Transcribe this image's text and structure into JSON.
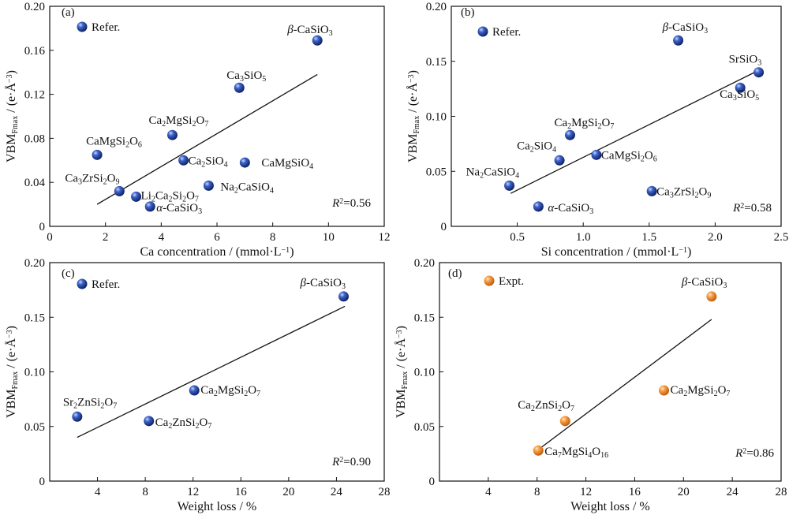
{
  "chart_data": [
    {
      "type": "scatter",
      "panel_label": "(a)",
      "xlabel": "Ca concentration / (mmol·L⁻¹)",
      "ylabel": "VBM_Fmax / (e·Å⁻³)",
      "xlim": [
        0,
        12
      ],
      "ylim": [
        0,
        0.2
      ],
      "xticks": [
        0,
        2,
        4,
        6,
        8,
        10,
        12
      ],
      "yticks": [
        0,
        0.04,
        0.08,
        0.12,
        0.16,
        0.2
      ],
      "ytick_labels": [
        "0",
        "0.04",
        "0.08",
        "0.12",
        "0.16",
        "0.20"
      ],
      "marker_color": "#1f3b8f",
      "legend": {
        "label": "Refer.",
        "position": "top-left"
      },
      "r2": "R²=0.56",
      "fit_line": {
        "x": [
          1.7,
          9.6
        ],
        "y": [
          0.02,
          0.138
        ]
      },
      "points": [
        {
          "label": "β-CaSiO₃",
          "x": 9.6,
          "y": 0.169
        },
        {
          "label": "Ca₃SiO₅",
          "x": 6.8,
          "y": 0.126
        },
        {
          "label": "Ca₂MgSi₂O₇",
          "x": 4.4,
          "y": 0.083
        },
        {
          "label": "CaMgSi₂O₆",
          "x": 1.7,
          "y": 0.065
        },
        {
          "label": "Ca₂SiO₄",
          "x": 4.8,
          "y": 0.06
        },
        {
          "label": "CaMgSiO₄",
          "x": 7.0,
          "y": 0.058
        },
        {
          "label": "Ca₃ZrSi₂O₉",
          "x": 2.5,
          "y": 0.032
        },
        {
          "label": "Na₂CaSiO₄",
          "x": 5.7,
          "y": 0.037
        },
        {
          "label": "Li₂Ca₂Si₂O₇",
          "x": 3.1,
          "y": 0.027
        },
        {
          "label": "α-CaSiO₃",
          "x": 3.6,
          "y": 0.018
        }
      ]
    },
    {
      "type": "scatter",
      "panel_label": "(b)",
      "xlabel": "Si concentration / (mmol·L⁻¹)",
      "ylabel": "VBM_Fmax / (e·Å⁻³)",
      "xlim": [
        0,
        2.5
      ],
      "ylim": [
        0,
        0.2
      ],
      "xticks": [
        0.5,
        1.0,
        1.5,
        2.0,
        2.5
      ],
      "xtick_labels": [
        "0.5",
        "1.0",
        "1.5",
        "2.0",
        "2.5"
      ],
      "yticks": [
        0,
        0.05,
        0.1,
        0.15,
        0.2
      ],
      "ytick_labels": [
        "0",
        "0.05",
        "0.10",
        "0.15",
        "0.20"
      ],
      "marker_color": "#1f3b8f",
      "legend": {
        "label": "Refer.",
        "position": "top-left"
      },
      "r2": "R²=0.58",
      "fit_line": {
        "x": [
          0.45,
          2.35
        ],
        "y": [
          0.03,
          0.143
        ]
      },
      "points": [
        {
          "label": "β-CaSiO₃",
          "x": 1.72,
          "y": 0.169
        },
        {
          "label": "SrSiO₃",
          "x": 2.33,
          "y": 0.14
        },
        {
          "label": "Ca₃SiO₅",
          "x": 2.19,
          "y": 0.126
        },
        {
          "label": "Ca₂MgSi₂O₇",
          "x": 0.9,
          "y": 0.083
        },
        {
          "label": "Ca₂SiO₄",
          "x": 0.82,
          "y": 0.06
        },
        {
          "label": "CaMgSi₂O₆",
          "x": 1.1,
          "y": 0.065
        },
        {
          "label": "Na₂CaSiO₄",
          "x": 0.44,
          "y": 0.037
        },
        {
          "label": "Ca₃ZrSi₂O₉",
          "x": 1.52,
          "y": 0.032
        },
        {
          "label": "α-CaSiO₃",
          "x": 0.66,
          "y": 0.018
        }
      ]
    },
    {
      "type": "scatter",
      "panel_label": "(c)",
      "xlabel": "Weight loss / %",
      "ylabel": "VBM_Fmax / (e·Å⁻³)",
      "xlim": [
        0,
        28
      ],
      "ylim": [
        0,
        0.2
      ],
      "xticks": [
        4,
        8,
        12,
        16,
        20,
        24,
        28
      ],
      "yticks": [
        0,
        0.05,
        0.1,
        0.15,
        0.2
      ],
      "ytick_labels": [
        "0",
        "0.05",
        "0.10",
        "0.15",
        "0.20"
      ],
      "marker_color": "#1f3b8f",
      "legend": {
        "label": "Refer.",
        "position": "top-left"
      },
      "r2": "R²=0.90",
      "fit_line": {
        "x": [
          2.3,
          24.7
        ],
        "y": [
          0.04,
          0.16
        ]
      },
      "points": [
        {
          "label": "β-CaSiO₃",
          "x": 24.6,
          "y": 0.169
        },
        {
          "label": "Ca₂MgSi₂O₇",
          "x": 12.1,
          "y": 0.083
        },
        {
          "label": "Sr₂ZnSi₂O₇",
          "x": 2.3,
          "y": 0.059
        },
        {
          "label": "Ca₂ZnSi₂O₇",
          "x": 8.3,
          "y": 0.055
        }
      ]
    },
    {
      "type": "scatter",
      "panel_label": "(d)",
      "xlabel": "Weight loss / %",
      "ylabel": "VBM_Fmax / (e·Å⁻³)",
      "xlim": [
        0,
        28
      ],
      "ylim": [
        0,
        0.2
      ],
      "xticks": [
        4,
        8,
        12,
        16,
        20,
        24,
        28
      ],
      "yticks": [
        0,
        0.05,
        0.1,
        0.15,
        0.2
      ],
      "ytick_labels": [
        "0",
        "0.05",
        "0.10",
        "0.15",
        "0.20"
      ],
      "marker_color": "#f08a24",
      "legend": {
        "label": "Expt.",
        "position": "top-left"
      },
      "r2": "R²=0.86",
      "fit_line": {
        "x": [
          8.0,
          22.3
        ],
        "y": [
          0.028,
          0.148
        ]
      },
      "points": [
        {
          "label": "β-CaSiO₃",
          "x": 22.3,
          "y": 0.169
        },
        {
          "label": "Ca₂MgSi₂O₇",
          "x": 18.4,
          "y": 0.083
        },
        {
          "label": "Ca₂ZnSi₂O₇",
          "x": 10.3,
          "y": 0.055
        },
        {
          "label": "Ca₇MgSi₄O₁₆",
          "x": 8.1,
          "y": 0.028
        }
      ]
    }
  ]
}
